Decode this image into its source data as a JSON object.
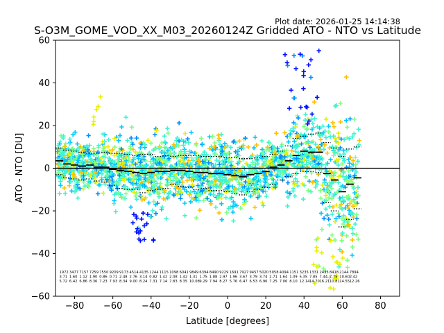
{
  "chart_data": {
    "type": "scatter",
    "title": "S-O3M_GOME_VOD_XX_M03_20260124Z Gridded ATO - NTO vs Latitude",
    "plot_date": "Plot date: 2026-01-25 14:14:38",
    "xlabel": "Latitude [degrees]",
    "ylabel": "ATO - NTO [DU]",
    "xlim": [
      -90,
      90
    ],
    "ylim": [
      -60,
      60
    ],
    "x_ticks": [
      -80,
      -60,
      -40,
      -20,
      0,
      20,
      40,
      60,
      80
    ],
    "y_ticks": [
      -60,
      -40,
      -20,
      0,
      20,
      40,
      60
    ],
    "grid": false,
    "zero_line": true,
    "colors": {
      "cyan": "#00c8ff",
      "aqua": "#3cf5d2",
      "lightgreen": "#80ff80",
      "yellow": "#e6f000",
      "orange": "#ffc000",
      "blue": "#0010ff",
      "dodger": "#0090ff",
      "stat_line": "#000000"
    },
    "bins": {
      "lat": [
        -88,
        -84,
        -80,
        -76,
        -72,
        -68,
        -64,
        -60,
        -56,
        -52,
        -48,
        -44,
        -40,
        -36,
        -32,
        -28,
        -24,
        -20,
        -16,
        -12,
        -8,
        -4,
        0,
        4,
        8,
        12,
        16,
        20,
        24,
        28,
        32,
        36,
        40,
        44,
        48,
        52,
        56,
        60,
        64,
        68
      ],
      "mean": [
        3.5,
        2.0,
        1.5,
        1.0,
        1.5,
        0.5,
        0.5,
        -0.5,
        -1.0,
        -1.5,
        -2.0,
        -2.5,
        -2.0,
        -1.5,
        -1.5,
        -1.0,
        -1.0,
        -1.5,
        -2.0,
        -2.0,
        -2.5,
        -2.5,
        -3.0,
        -3.5,
        -4.0,
        -3.0,
        -2.5,
        -1.5,
        0.5,
        1.5,
        3.5,
        6.0,
        8.0,
        7.5,
        7.5,
        -2.5,
        -5.5,
        -11.0,
        -7.5,
        -4.5
      ],
      "sd_upper": [
        9.5,
        8.5,
        8.0,
        7.5,
        7.0,
        7.0,
        7.5,
        7.0,
        7.0,
        6.5,
        6.0,
        6.5,
        6.5,
        5.5,
        6.0,
        5.5,
        6.0,
        6.0,
        6.0,
        5.5,
        5.5,
        5.5,
        5.0,
        5.0,
        4.5,
        4.5,
        5.0,
        5.5,
        6.5,
        8.0,
        10.5,
        14.0,
        15.0,
        16.0,
        16.5,
        12.0,
        9.5,
        5.5,
        9.0,
        10.0
      ],
      "sd_lower": [
        -3.0,
        -4.5,
        -5.0,
        -5.5,
        -5.0,
        -6.0,
        -6.5,
        -8.0,
        -9.5,
        -10.0,
        -10.0,
        -11.5,
        -10.5,
        -10.0,
        -9.5,
        -7.5,
        -8.5,
        -9.0,
        -10.0,
        -9.5,
        -10.5,
        -10.5,
        -11.0,
        -12.0,
        -12.5,
        -11.0,
        -10.0,
        -9.0,
        -7.5,
        -5.5,
        -4.0,
        -2.5,
        -1.5,
        -1.5,
        -2.0,
        -16.0,
        -20.0,
        -27.5,
        -24.0,
        -19.0
      ]
    },
    "bin_labels": {
      "count": [
        "1972",
        "3477",
        "7157",
        "7259",
        "7550",
        "9209",
        "9173",
        "4514",
        "4135",
        "1244",
        "1115",
        "1098",
        "6041",
        "9849",
        "6394",
        "8490",
        "9229",
        "1691",
        "7927",
        "9457",
        "5020",
        "5058",
        "4094",
        "1151",
        "3235",
        "1331",
        "2435",
        "8418",
        "2144",
        "7894"
      ],
      "mean": [
        "3.71",
        "1.60",
        "1.12",
        "1.90",
        "0.86",
        "0.71",
        "2.48",
        "2.76",
        "3.14",
        "0.82",
        "1.42",
        "2.08",
        "1.42",
        "1.31",
        "1.75",
        "1.88",
        "2.97",
        "1.96",
        "3.67",
        "3.79",
        "3.74",
        "2.71",
        "1.64",
        "1.09",
        "5.35",
        "7.85",
        "7.44",
        "7.75",
        "10.60",
        "2.42"
      ],
      "sd": [
        "5.72",
        "6.42",
        "6.86",
        "8.36",
        "7.23",
        "7.93",
        "8.34",
        "9.00",
        "8.24",
        "7.31",
        "7.14",
        "7.83",
        "8.35",
        "10.08",
        "9.29",
        "7.94",
        "8.27",
        "5.76",
        "6.47",
        "6.53",
        "6.96",
        "7.25",
        "7.06",
        "8.10",
        "12.14",
        "14.70",
        "16.21",
        "10.81",
        "14.55",
        "12.26"
      ]
    }
  }
}
